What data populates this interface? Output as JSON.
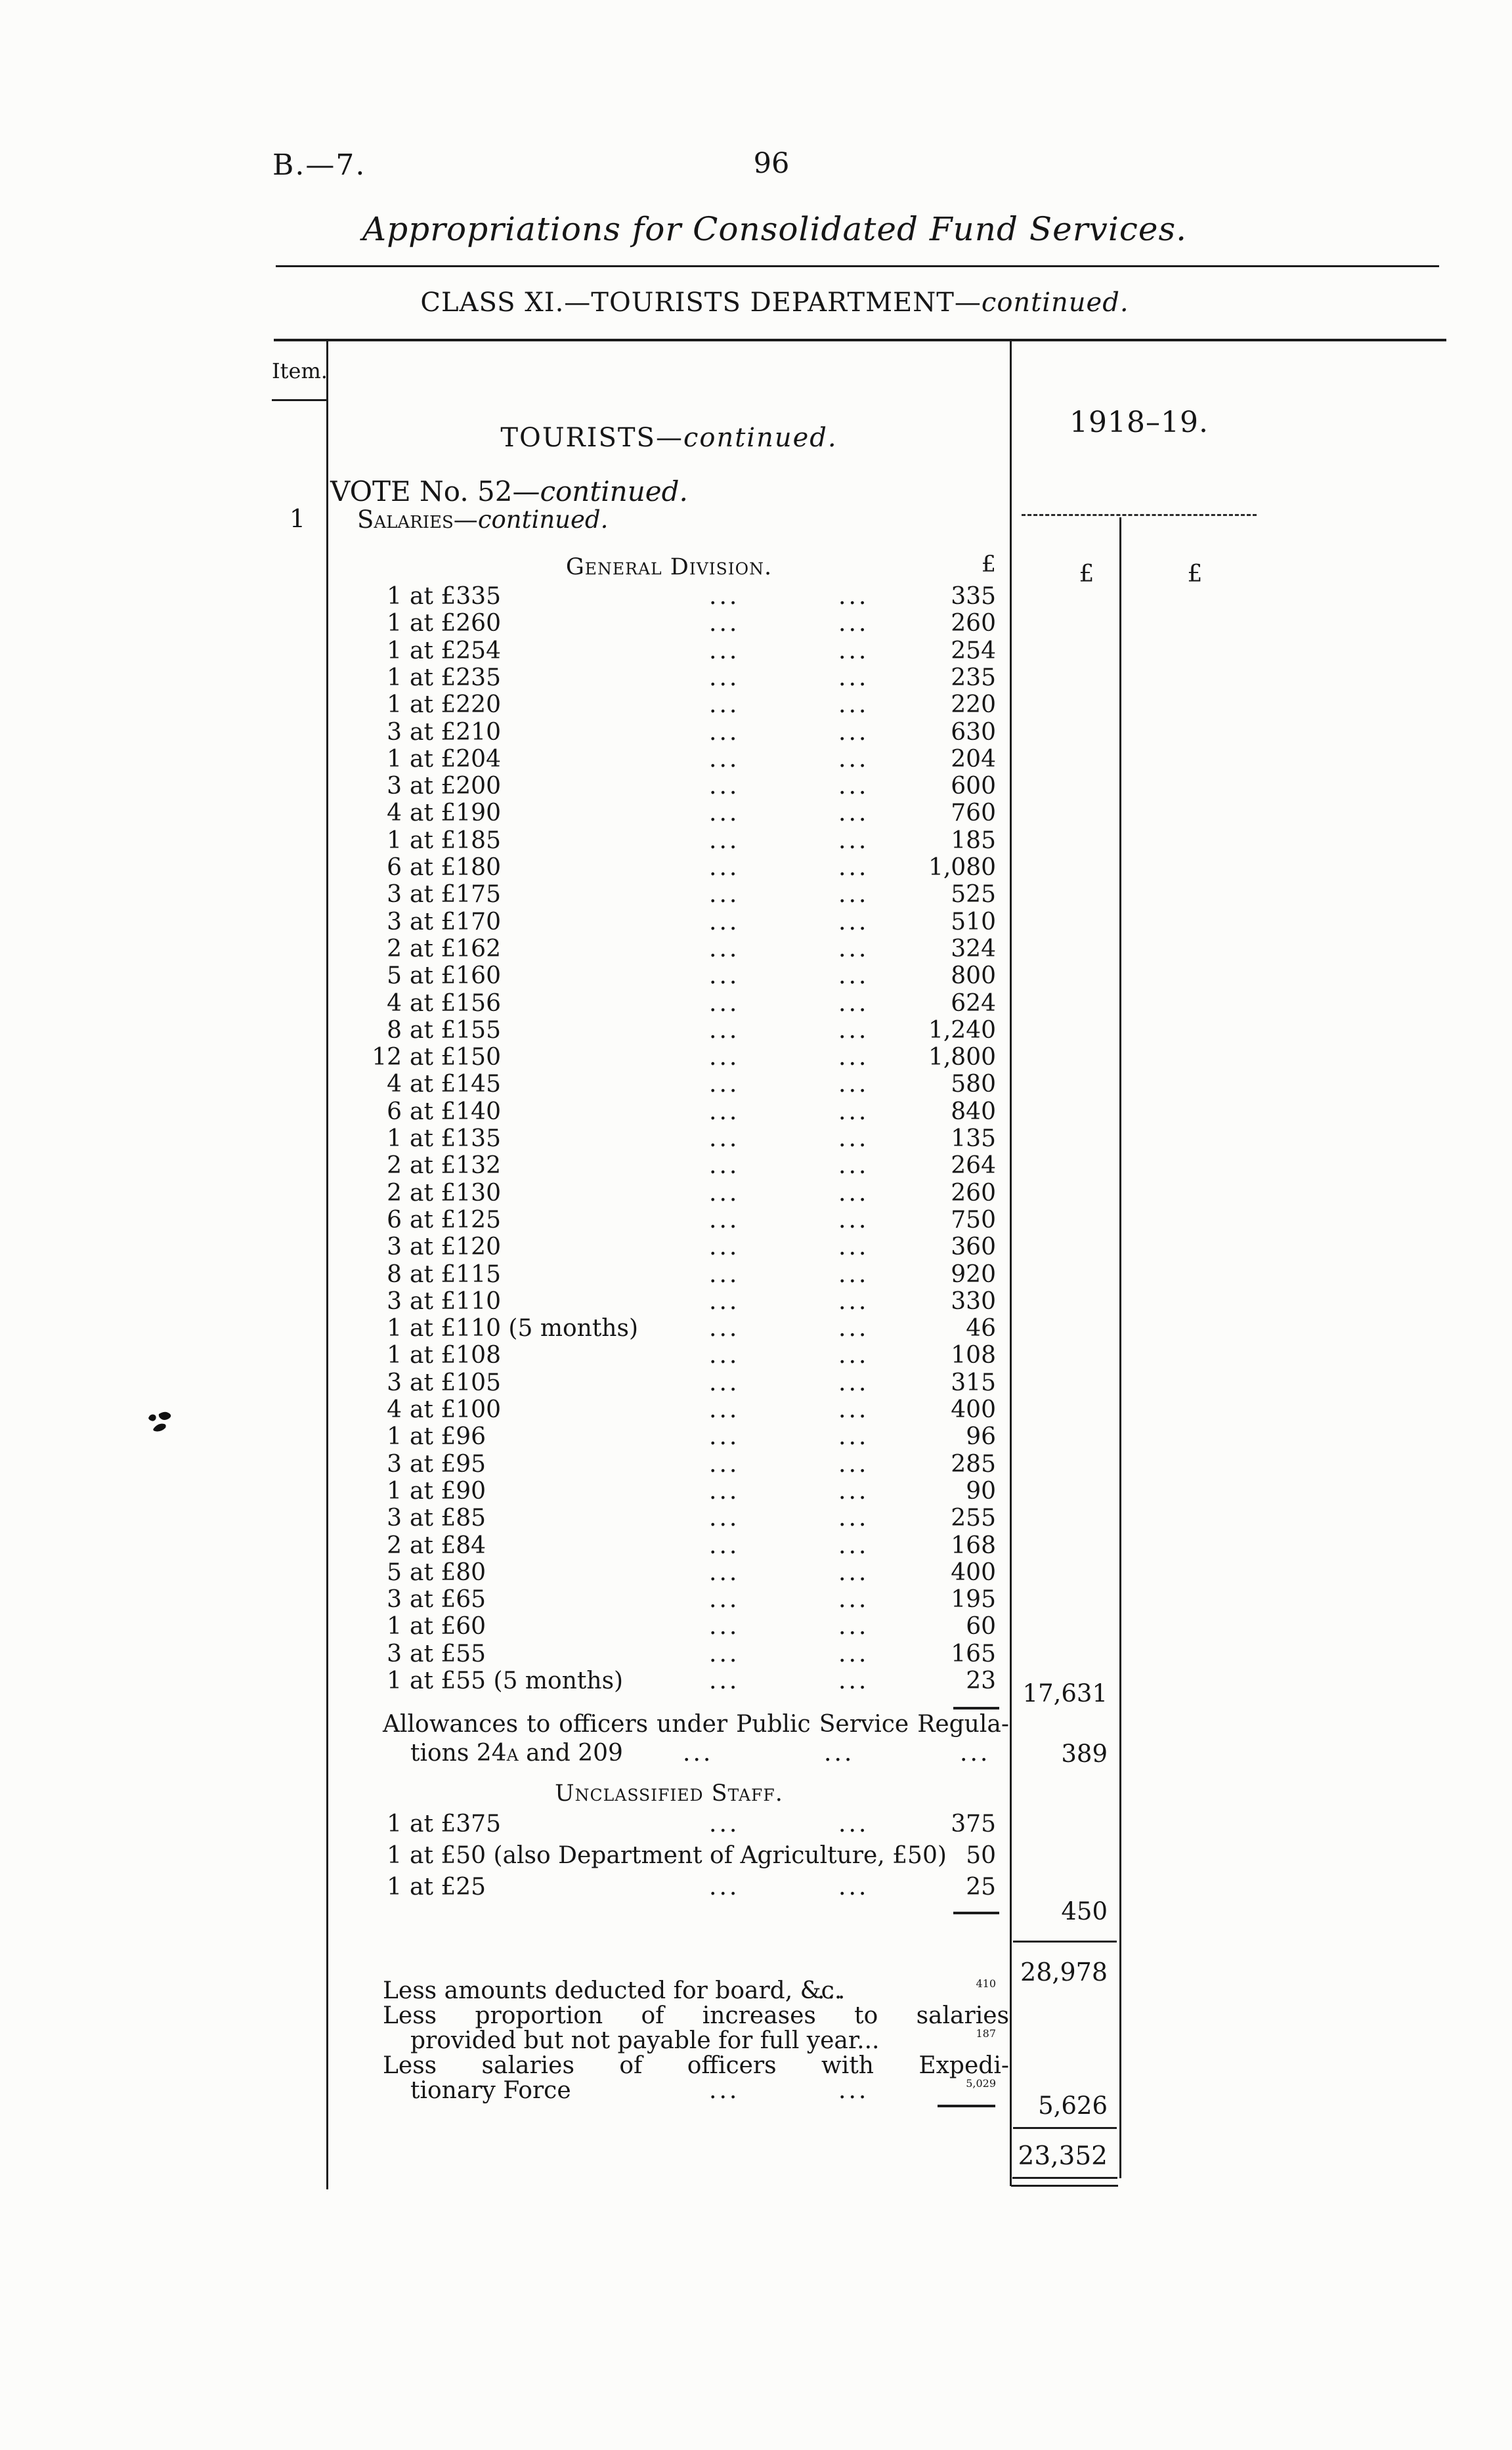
{
  "page": {
    "report_code": "B.—7.",
    "page_number": "96",
    "running_title": "Appropriations for Consolidated Fund Services.",
    "class_heading": {
      "main": "CLASS XI.—TOURISTS DEPARTMENT—",
      "continued": "continued."
    }
  },
  "table": {
    "item_col_header": "Item.",
    "item_number": "1",
    "year_header": "1918–19.",
    "col1_currency": "£",
    "col2_currency": "£",
    "dot_leader": "...",
    "tourists_heading": {
      "main": "TOURISTS—",
      "continued": "continued."
    },
    "vote_heading": {
      "main": "VOTE No. 52—",
      "continued": "continued."
    },
    "salaries_heading": {
      "main": "Salaries—",
      "continued": "continued."
    },
    "general_division": {
      "heading": "General Division.",
      "currency": "£"
    },
    "general_rows": [
      {
        "count": "1",
        "rate": "at £335",
        "value": "335"
      },
      {
        "count": "1",
        "rate": "at £260",
        "value": "260"
      },
      {
        "count": "1",
        "rate": "at £254",
        "value": "254"
      },
      {
        "count": "1",
        "rate": "at £235",
        "value": "235"
      },
      {
        "count": "1",
        "rate": "at £220",
        "value": "220"
      },
      {
        "count": "3",
        "rate": "at £210",
        "value": "630"
      },
      {
        "count": "1",
        "rate": "at £204",
        "value": "204"
      },
      {
        "count": "3",
        "rate": "at £200",
        "value": "600"
      },
      {
        "count": "4",
        "rate": "at £190",
        "value": "760"
      },
      {
        "count": "1",
        "rate": "at £185",
        "value": "185"
      },
      {
        "count": "6",
        "rate": "at £180",
        "value": "1,080"
      },
      {
        "count": "3",
        "rate": "at £175",
        "value": "525"
      },
      {
        "count": "3",
        "rate": "at £170",
        "value": "510"
      },
      {
        "count": "2",
        "rate": "at £162",
        "value": "324"
      },
      {
        "count": "5",
        "rate": "at £160",
        "value": "800"
      },
      {
        "count": "4",
        "rate": "at £156",
        "value": "624"
      },
      {
        "count": "8",
        "rate": "at £155",
        "value": "1,240"
      },
      {
        "count": "12",
        "rate": "at £150",
        "value": "1,800"
      },
      {
        "count": "4",
        "rate": "at £145",
        "value": "580"
      },
      {
        "count": "6",
        "rate": "at £140",
        "value": "840"
      },
      {
        "count": "1",
        "rate": "at £135",
        "value": "135"
      },
      {
        "count": "2",
        "rate": "at £132",
        "value": "264"
      },
      {
        "count": "2",
        "rate": "at £130",
        "value": "260"
      },
      {
        "count": "6",
        "rate": "at £125",
        "value": "750"
      },
      {
        "count": "3",
        "rate": "at £120",
        "value": "360"
      },
      {
        "count": "8",
        "rate": "at £115",
        "value": "920"
      },
      {
        "count": "3",
        "rate": "at £110",
        "value": "330"
      },
      {
        "count": "1",
        "rate": "at £110 (5 months)",
        "value": "46"
      },
      {
        "count": "1",
        "rate": "at £108",
        "value": "108"
      },
      {
        "count": "3",
        "rate": "at £105",
        "value": "315"
      },
      {
        "count": "4",
        "rate": "at £100",
        "value": "400"
      },
      {
        "count": "1",
        "rate": "at £96",
        "value": "96"
      },
      {
        "count": "3",
        "rate": "at £95",
        "value": "285"
      },
      {
        "count": "1",
        "rate": "at £90",
        "value": "90"
      },
      {
        "count": "3",
        "rate": "at £85",
        "value": "255"
      },
      {
        "count": "2",
        "rate": "at £84",
        "value": "168"
      },
      {
        "count": "5",
        "rate": "at £80",
        "value": "400"
      },
      {
        "count": "3",
        "rate": "at £65",
        "value": "195"
      },
      {
        "count": "1",
        "rate": "at £60",
        "value": "60"
      },
      {
        "count": "3",
        "rate": "at £55",
        "value": "165"
      },
      {
        "count": "1",
        "rate": "at £55 (5 months)",
        "value": "23"
      }
    ],
    "general_total": "17,631",
    "allowances": {
      "line1": "Allowances to officers under Public Service Regula-",
      "line2_pre": "tions 24",
      "line2_smallcap": "a",
      "line2_post": " and 209",
      "value": "389"
    },
    "unclassified": {
      "heading": "Unclassified Staff.",
      "rows": [
        {
          "count": "1",
          "rate": "at £375",
          "dots": true,
          "value": "375"
        },
        {
          "count": "1",
          "rate": "at £50 (also Department of Agriculture, £50)",
          "dots": false,
          "value": "50"
        },
        {
          "count": "1",
          "rate": "at £25",
          "dots": true,
          "value": "25"
        }
      ],
      "total": "450"
    },
    "salaries_subtotal": "28,978",
    "deductions": [
      {
        "text": "Less amounts deducted for board, &c.",
        "indent": false,
        "justify": false,
        "dots": 1,
        "value": "410"
      },
      {
        "text": "Less proportion of increases to salaries",
        "indent": false,
        "justify": true,
        "dots": 0,
        "value": ""
      },
      {
        "text": "provided but not payable for full year...",
        "indent": true,
        "justify": false,
        "dots": 0,
        "value": "187"
      },
      {
        "text": "Less salaries of officers with Expedi-",
        "indent": false,
        "justify": true,
        "dots": 0,
        "value": ""
      },
      {
        "text": "tionary Force",
        "indent": true,
        "justify": false,
        "dots": 2,
        "value": "5,029"
      }
    ],
    "deductions_total": "5,626",
    "vote_total": "23,352"
  }
}
